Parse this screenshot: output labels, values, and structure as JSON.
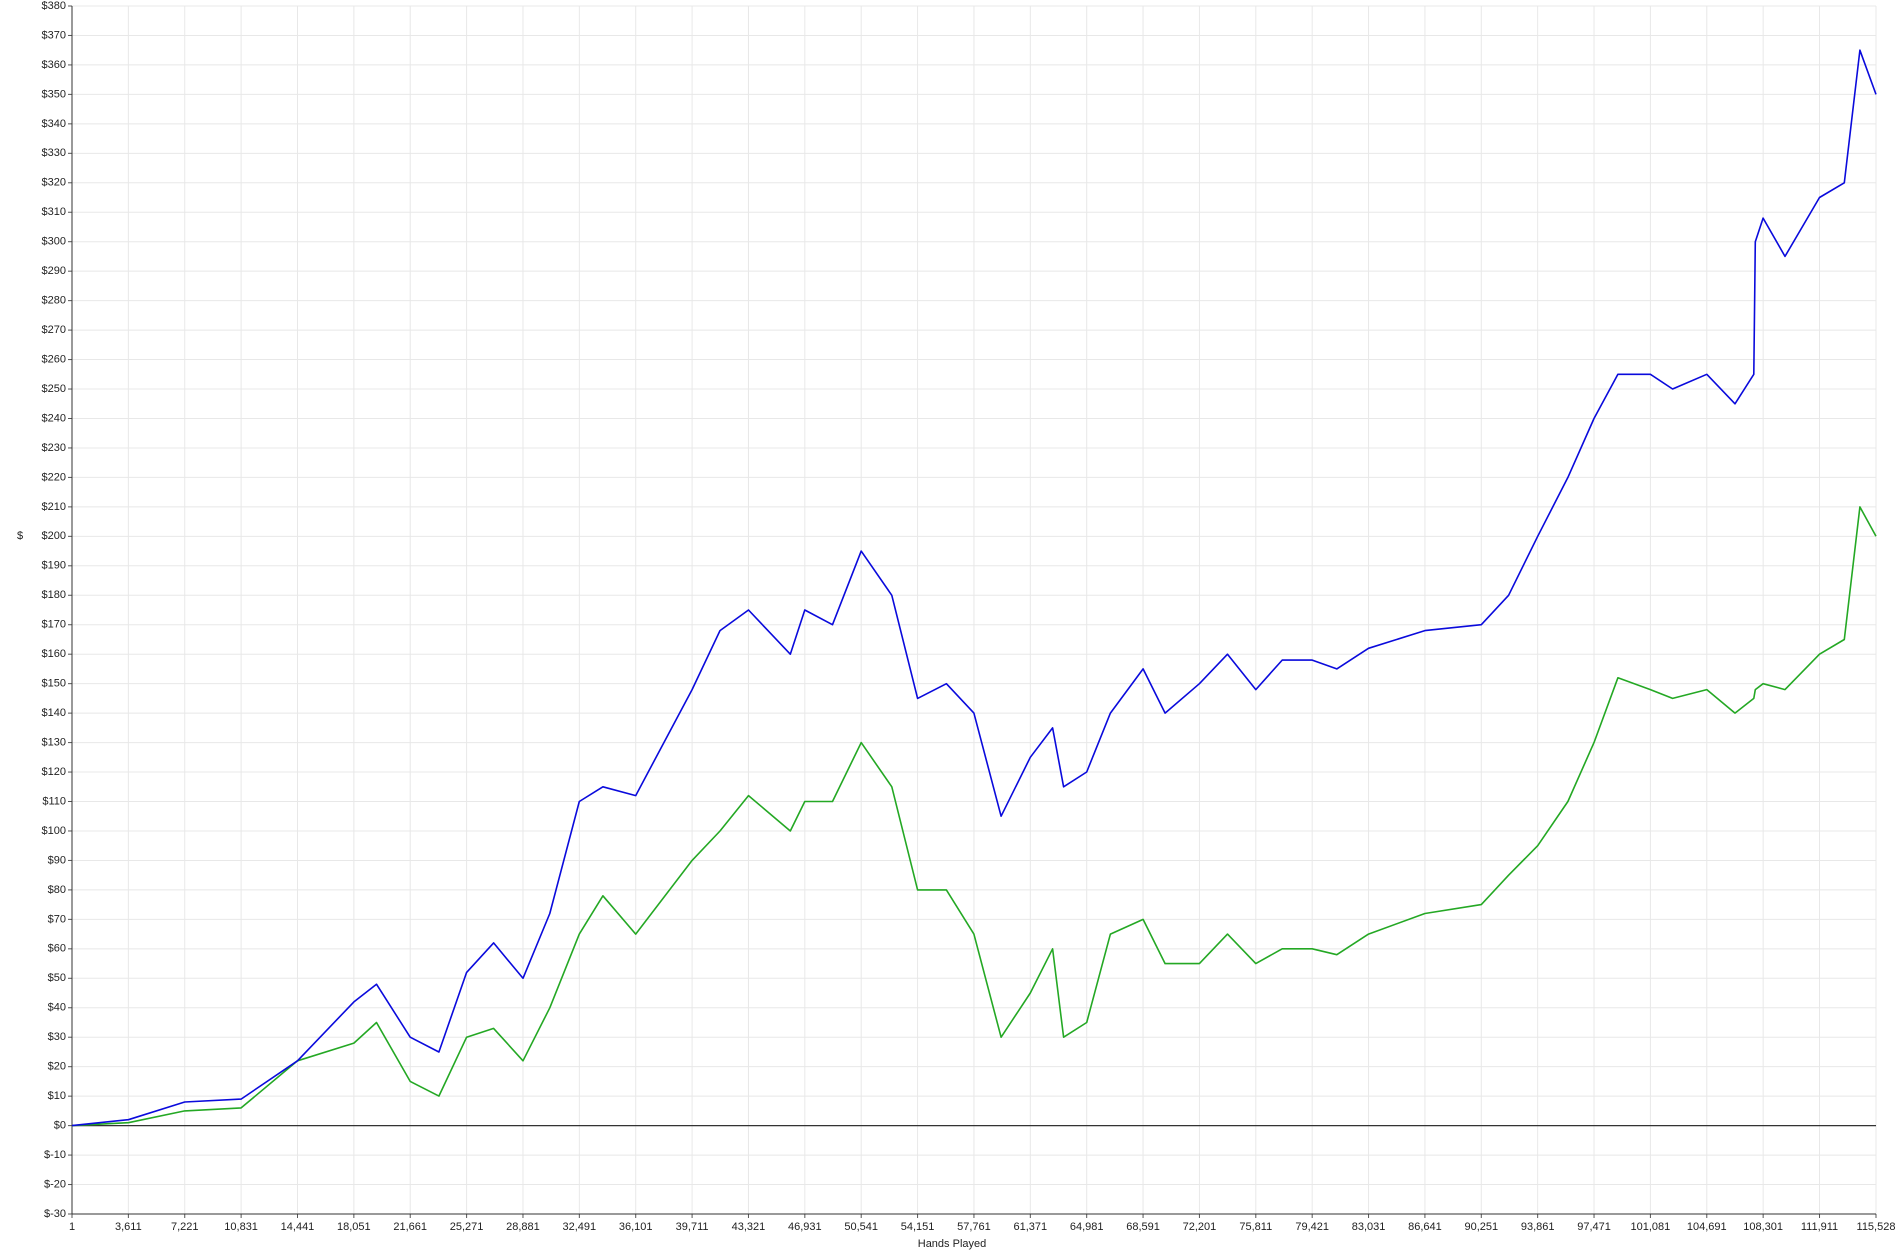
{
  "chart_data": {
    "type": "line",
    "x_label": "Hands Played",
    "y_label": "$",
    "x": [
      1,
      3611,
      7221,
      10831,
      14441,
      18051,
      19500,
      21661,
      23500,
      25271,
      27000,
      28881,
      30600,
      32491,
      34000,
      36101,
      39711,
      41500,
      43321,
      46000,
      46931,
      48700,
      50541,
      52500,
      54151,
      56000,
      57761,
      59500,
      61371,
      62800,
      63500,
      64981,
      66500,
      68591,
      70000,
      72201,
      74000,
      75811,
      77500,
      79421,
      81000,
      83031,
      86641,
      90251,
      92000,
      93861,
      95800,
      97471,
      99000,
      101081,
      102500,
      104691,
      106500,
      107700,
      107800,
      108301,
      109700,
      111911,
      113500,
      114500,
      115528
    ],
    "series": [
      {
        "color": "#0a0adc",
        "values": [
          0,
          2,
          8,
          9,
          22,
          42,
          48,
          30,
          25,
          52,
          62,
          50,
          72,
          110,
          115,
          112,
          148,
          168,
          175,
          160,
          175,
          170,
          195,
          180,
          145,
          150,
          140,
          105,
          125,
          135,
          115,
          120,
          140,
          155,
          140,
          150,
          160,
          148,
          158,
          158,
          155,
          162,
          168,
          170,
          180,
          200,
          220,
          240,
          255,
          255,
          250,
          255,
          245,
          255,
          300,
          308,
          295,
          315,
          320,
          365,
          350
        ]
      },
      {
        "color": "#24a824",
        "values": [
          0,
          1,
          5,
          6,
          22,
          28,
          35,
          15,
          10,
          30,
          33,
          22,
          40,
          65,
          78,
          65,
          90,
          100,
          112,
          100,
          110,
          110,
          130,
          115,
          80,
          80,
          65,
          30,
          45,
          60,
          30,
          35,
          65,
          70,
          55,
          55,
          65,
          55,
          60,
          60,
          58,
          65,
          72,
          75,
          85,
          95,
          110,
          130,
          152,
          148,
          145,
          148,
          140,
          145,
          148,
          150,
          148,
          160,
          165,
          210,
          200
        ]
      }
    ],
    "xlim": [
      1,
      115528
    ],
    "xticks": [
      1,
      {
        "value": 3611,
        "label": "3,611"
      },
      {
        "value": 7221,
        "label": "7,221"
      },
      {
        "value": 10831,
        "label": "10,831"
      },
      {
        "value": 14441,
        "label": "14,441"
      },
      {
        "value": 18051,
        "label": "18,051"
      },
      {
        "value": 21661,
        "label": "21,661"
      },
      {
        "value": 25271,
        "label": "25,271"
      },
      {
        "value": 28881,
        "label": "28,881"
      },
      {
        "value": 32491,
        "label": "32,491"
      },
      {
        "value": 36101,
        "label": "36,101"
      },
      {
        "value": 39711,
        "label": "39,711"
      },
      {
        "value": 43321,
        "label": "43,321"
      },
      {
        "value": 46931,
        "label": "46,931"
      },
      {
        "value": 50541,
        "label": "50,541"
      },
      {
        "value": 54151,
        "label": "54,151"
      },
      {
        "value": 57761,
        "label": "57,761"
      },
      {
        "value": 61371,
        "label": "61,371"
      },
      {
        "value": 64981,
        "label": "64,981"
      },
      {
        "value": 68591,
        "label": "68,591"
      },
      {
        "value": 72201,
        "label": "72,201"
      },
      {
        "value": 75811,
        "label": "75,811"
      },
      {
        "value": 79421,
        "label": "79,421"
      },
      {
        "value": 83031,
        "label": "83,031"
      },
      {
        "value": 86641,
        "label": "86,641"
      },
      {
        "value": 90251,
        "label": "90,251"
      },
      {
        "value": 93861,
        "label": "93,861"
      },
      {
        "value": 97471,
        "label": "97,471"
      },
      {
        "value": 101081,
        "label": "101,081"
      },
      {
        "value": 104691,
        "label": "104,691"
      },
      {
        "value": 108301,
        "label": "108,301"
      },
      {
        "value": 111911,
        "label": "111,911"
      },
      {
        "value": 115528,
        "label": "115,528"
      }
    ],
    "ylim": [
      -30,
      380
    ],
    "yticks": [
      {
        "value": -30,
        "label": "$-30"
      },
      {
        "value": -20,
        "label": "$-20"
      },
      {
        "value": -10,
        "label": "$-10"
      },
      {
        "value": 0,
        "label": "$0"
      },
      {
        "value": 10,
        "label": "$10"
      },
      {
        "value": 20,
        "label": "$20"
      },
      {
        "value": 30,
        "label": "$30"
      },
      {
        "value": 40,
        "label": "$40"
      },
      {
        "value": 50,
        "label": "$50"
      },
      {
        "value": 60,
        "label": "$60"
      },
      {
        "value": 70,
        "label": "$70"
      },
      {
        "value": 80,
        "label": "$80"
      },
      {
        "value": 90,
        "label": "$90"
      },
      {
        "value": 100,
        "label": "$100"
      },
      {
        "value": 110,
        "label": "$110"
      },
      {
        "value": 120,
        "label": "$120"
      },
      {
        "value": 130,
        "label": "$130"
      },
      {
        "value": 140,
        "label": "$140"
      },
      {
        "value": 150,
        "label": "$150"
      },
      {
        "value": 160,
        "label": "$160"
      },
      {
        "value": 170,
        "label": "$170"
      },
      {
        "value": 180,
        "label": "$180"
      },
      {
        "value": 190,
        "label": "$190"
      },
      {
        "value": 200,
        "label": "$200"
      },
      {
        "value": 210,
        "label": "$210"
      },
      {
        "value": 220,
        "label": "$220"
      },
      {
        "value": 230,
        "label": "$230"
      },
      {
        "value": 240,
        "label": "$240"
      },
      {
        "value": 250,
        "label": "$250"
      },
      {
        "value": 260,
        "label": "$260"
      },
      {
        "value": 270,
        "label": "$270"
      },
      {
        "value": 280,
        "label": "$280"
      },
      {
        "value": 290,
        "label": "$290"
      },
      {
        "value": 300,
        "label": "$300"
      },
      {
        "value": 310,
        "label": "$310"
      },
      {
        "value": 320,
        "label": "$320"
      },
      {
        "value": 330,
        "label": "$330"
      },
      {
        "value": 340,
        "label": "$340"
      },
      {
        "value": 350,
        "label": "$350"
      },
      {
        "value": 360,
        "label": "$360"
      },
      {
        "value": 370,
        "label": "$370"
      },
      {
        "value": 380,
        "label": "$380"
      }
    ],
    "grid": true
  }
}
